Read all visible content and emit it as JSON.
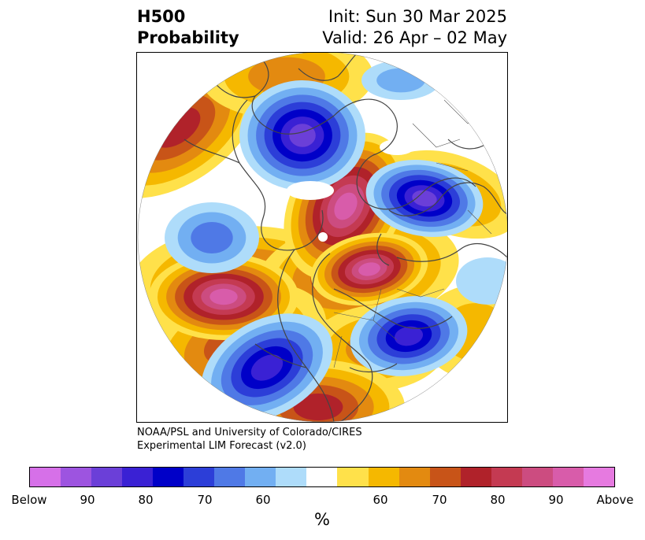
{
  "header": {
    "variable": "H500",
    "product": "Probability",
    "init": "Init: Sun 30 Mar 2025",
    "valid": "Valid: 26 Apr – 02 May"
  },
  "credit": {
    "line1": "NOAA/PSL and University of Colorado/CIRES",
    "line2": "Experimental LIM Forecast (v2.0)"
  },
  "colorbar": {
    "unit": "%",
    "ticks": [
      "Below",
      "90",
      "80",
      "70",
      "60",
      "60",
      "70",
      "80",
      "90",
      "Above"
    ],
    "colors": [
      "#d670e8",
      "#9d54e0",
      "#6b3fd8",
      "#3a21d4",
      "#0000c8",
      "#2c3ed8",
      "#4f79e6",
      "#72aff2",
      "#aedcfa",
      "#ffffff",
      "#ffe14a",
      "#f5b800",
      "#e38a10",
      "#c85418",
      "#b0222a",
      "#c43a52",
      "#cc4c80",
      "#d85caa",
      "#e67ae0"
    ]
  },
  "map": {
    "projection": "polar-stereographic",
    "region": "Northern Hemisphere",
    "below_palette": [
      "#aedcfa",
      "#72aff2",
      "#4f79e6",
      "#2c3ed8",
      "#0000c8",
      "#3a21d4",
      "#6b3fd8"
    ],
    "above_palette": [
      "#ffe14a",
      "#f5b800",
      "#e38a10",
      "#c85418",
      "#b0222a",
      "#c43a52",
      "#cc4c80",
      "#d85caa"
    ]
  }
}
